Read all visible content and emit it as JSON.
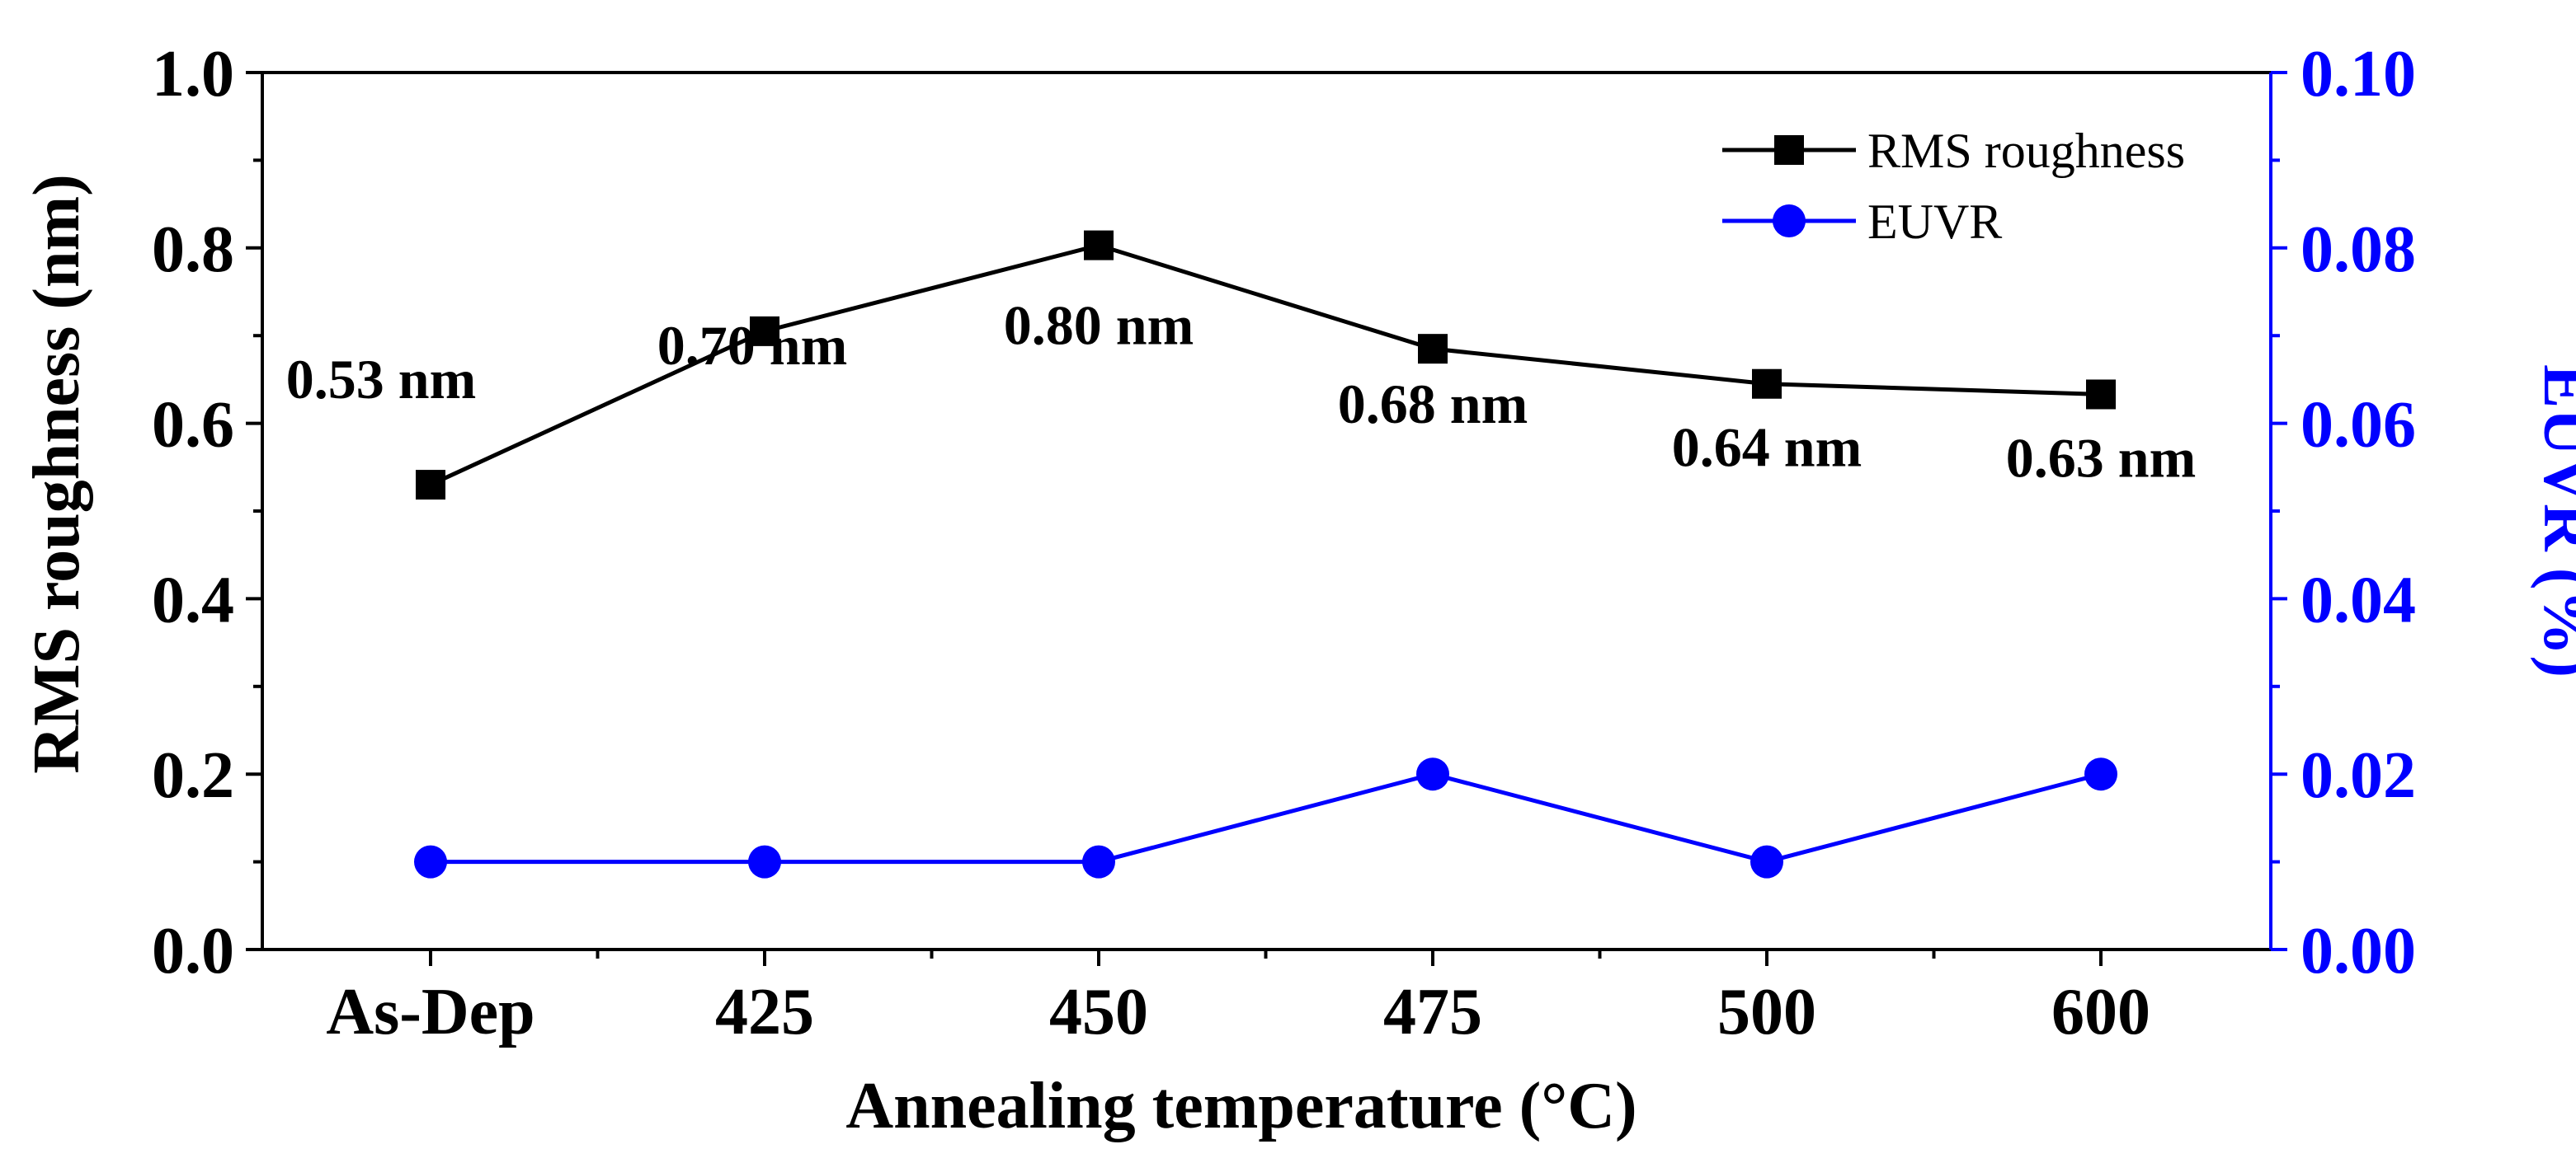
{
  "chart_data": {
    "type": "line",
    "title": "",
    "xlabel": "Annealing temperature (°C)",
    "ylabel_left": "RMS roughness (nm)",
    "ylabel_right": "EUVR (%)",
    "categories": [
      "As-Dep",
      "425",
      "450",
      "475",
      "500",
      "600"
    ],
    "ylim_left": [
      0,
      1.0
    ],
    "ylim_right": [
      0,
      0.1
    ],
    "yticks_left": [
      "0.0",
      "0.2",
      "0.4",
      "0.6",
      "0.8",
      "1.0"
    ],
    "yticks_right": [
      "0.00",
      "0.02",
      "0.04",
      "0.06",
      "0.08",
      "0.10"
    ],
    "grid": false,
    "legend_position": "top-right",
    "series": [
      {
        "name": "RMS roughness",
        "axis": "left",
        "color": "#000000",
        "marker": "square",
        "values": [
          0.53,
          0.705,
          0.803,
          0.685,
          0.645,
          0.633
        ],
        "labels": [
          "0.53 nm",
          "0.70 nm",
          "0.80 nm",
          "0.68 nm",
          "0.64 nm",
          "0.63 nm"
        ]
      },
      {
        "name": "EUVR",
        "axis": "right",
        "color": "#0000ff",
        "marker": "circle",
        "values": [
          0.01,
          0.01,
          0.01,
          0.02,
          0.01,
          0.02
        ]
      }
    ]
  }
}
